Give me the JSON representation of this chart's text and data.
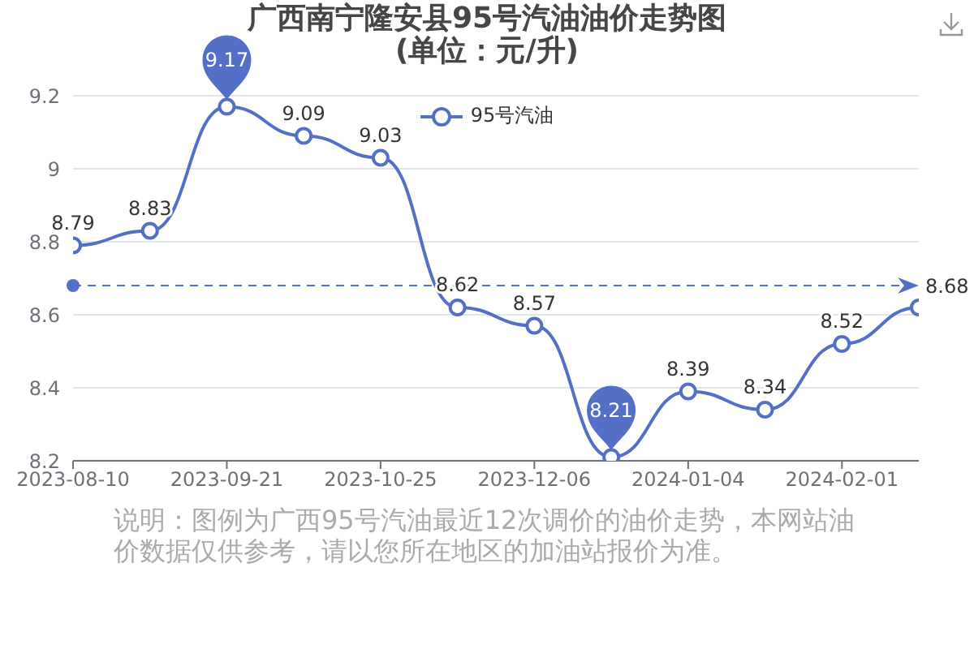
{
  "chart_data": {
    "type": "line",
    "title": "广西南宁隆安县95号汽油油价走势图",
    "subtitle": "(单位：元/升)",
    "categories": [
      "2023-08-10",
      null,
      "2023-09-21",
      null,
      "2023-10-25",
      null,
      "2023-12-06",
      null,
      "2024-01-04",
      null,
      "2024-02-01",
      null
    ],
    "series": [
      {
        "name": "95号汽油",
        "color": "#5470c6",
        "values": [
          8.79,
          8.83,
          9.17,
          9.09,
          9.03,
          8.62,
          8.57,
          8.21,
          8.39,
          8.34,
          8.52,
          8.62
        ],
        "value_labels": [
          "8.79",
          "8.83",
          null,
          "9.09",
          "9.03",
          "8.62",
          "8.57",
          null,
          "8.39",
          "8.34",
          "8.52",
          null
        ]
      }
    ],
    "ylim": [
      8.2,
      9.2
    ],
    "yticks": [
      8.2,
      8.4,
      8.6,
      8.8,
      9,
      9.2
    ],
    "grid": "y",
    "legend": "top",
    "marker": "circle",
    "line_style": "solid",
    "ref_lines": [
      {
        "axis": "y",
        "value": 8.68,
        "label": "8.68",
        "color": "#5470c6",
        "line_style": "dashed"
      }
    ],
    "annotations": [
      {
        "text": "9.17",
        "x": "2023-09-21",
        "y": 9.17
      },
      {
        "text": "8.21",
        "y": 8.21
      },
      "说明：图例为广西95号汽油最近12次调价的油价走势，本网站油价数据仅供参考，请以您所在地区的加油站报价为准。"
    ]
  }
}
